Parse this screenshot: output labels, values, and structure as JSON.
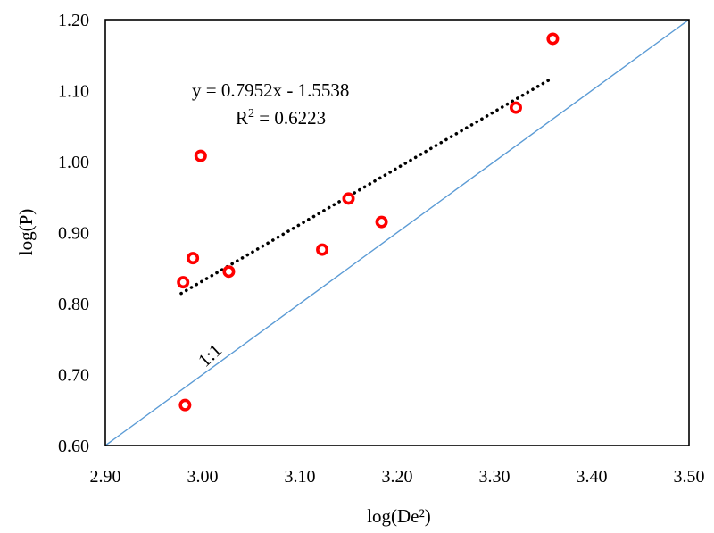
{
  "chart_data": {
    "type": "scatter",
    "xlabel": "log(De²)",
    "ylabel": "log(P)",
    "xlim": [
      2.9,
      3.5
    ],
    "ylim": [
      0.6,
      1.2
    ],
    "x_ticks": [
      "2.90",
      "3.00",
      "3.10",
      "3.20",
      "3.30",
      "3.40",
      "3.50"
    ],
    "y_ticks": [
      "0.60",
      "0.70",
      "0.80",
      "0.90",
      "1.00",
      "1.10",
      "1.20"
    ],
    "grid": false,
    "series": [
      {
        "marker": "open-circle",
        "color": "#ff0000",
        "points": [
          {
            "x": 2.98,
            "y": 0.83
          },
          {
            "x": 2.982,
            "y": 0.657
          },
          {
            "x": 2.99,
            "y": 0.864
          },
          {
            "x": 2.998,
            "y": 1.008
          },
          {
            "x": 3.027,
            "y": 0.845
          },
          {
            "x": 3.123,
            "y": 0.876
          },
          {
            "x": 3.15,
            "y": 0.948
          },
          {
            "x": 3.184,
            "y": 0.915
          },
          {
            "x": 3.322,
            "y": 1.076
          },
          {
            "x": 3.36,
            "y": 1.173
          }
        ]
      }
    ],
    "trendline": {
      "style": "dotted",
      "color": "#000000",
      "slope": 0.7952,
      "intercept": -1.5538,
      "x_range": [
        2.978,
        3.356
      ],
      "equation_label": "y = 0.7952x - 1.5538",
      "r2_label_prefix": "R",
      "r2_label_sup": "2",
      "r2_label_suffix": " = 0.6223"
    },
    "reference_line": {
      "label": "1:1",
      "color": "#5b9bd5",
      "from": [
        2.9,
        0.6
      ],
      "to": [
        3.5,
        1.2
      ]
    }
  }
}
